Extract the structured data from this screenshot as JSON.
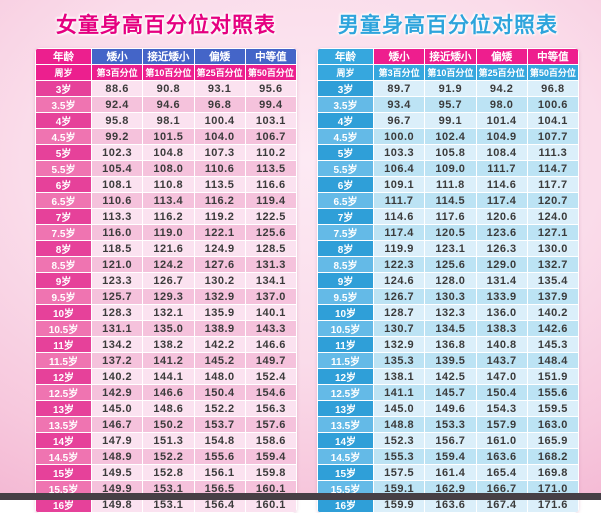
{
  "colors": {
    "girls_title": "#e50080",
    "boys_title": "#2ea4dc",
    "magenta_header": "#ec1f8e",
    "royal_blue_header": "#4465c8",
    "light_blue_header": "#36a7de",
    "bottom_bar": "#463f45"
  },
  "chart_data": [
    {
      "type": "table",
      "title": "女童身高百分位对照表",
      "columns_row1": [
        "年龄",
        "矮小",
        "接近矮小",
        "偏矮",
        "中等值"
      ],
      "columns_row2": [
        "周岁",
        "第3百分位",
        "第10百分位",
        "第25百分位",
        "第50百分位"
      ],
      "rows": [
        [
          "3岁",
          "88.6",
          "90.8",
          "93.1",
          "95.6"
        ],
        [
          "3.5岁",
          "92.4",
          "94.6",
          "96.8",
          "99.4"
        ],
        [
          "4岁",
          "95.8",
          "98.1",
          "100.4",
          "103.1"
        ],
        [
          "4.5岁",
          "99.2",
          "101.5",
          "104.0",
          "106.7"
        ],
        [
          "5岁",
          "102.3",
          "104.8",
          "107.3",
          "110.2"
        ],
        [
          "5.5岁",
          "105.4",
          "108.0",
          "110.6",
          "113.5"
        ],
        [
          "6岁",
          "108.1",
          "110.8",
          "113.5",
          "116.6"
        ],
        [
          "6.5岁",
          "110.6",
          "113.4",
          "116.2",
          "119.4"
        ],
        [
          "7岁",
          "113.3",
          "116.2",
          "119.2",
          "122.5"
        ],
        [
          "7.5岁",
          "116.0",
          "119.0",
          "122.1",
          "125.6"
        ],
        [
          "8岁",
          "118.5",
          "121.6",
          "124.9",
          "128.5"
        ],
        [
          "8.5岁",
          "121.0",
          "124.2",
          "127.6",
          "131.3"
        ],
        [
          "9岁",
          "123.3",
          "126.7",
          "130.2",
          "134.1"
        ],
        [
          "9.5岁",
          "125.7",
          "129.3",
          "132.9",
          "137.0"
        ],
        [
          "10岁",
          "128.3",
          "132.1",
          "135.9",
          "140.1"
        ],
        [
          "10.5岁",
          "131.1",
          "135.0",
          "138.9",
          "143.3"
        ],
        [
          "11岁",
          "134.2",
          "138.2",
          "142.2",
          "146.6"
        ],
        [
          "11.5岁",
          "137.2",
          "141.2",
          "145.2",
          "149.7"
        ],
        [
          "12岁",
          "140.2",
          "144.1",
          "148.0",
          "152.4"
        ],
        [
          "12.5岁",
          "142.9",
          "146.6",
          "150.4",
          "154.6"
        ],
        [
          "13岁",
          "145.0",
          "148.6",
          "152.2",
          "156.3"
        ],
        [
          "13.5岁",
          "146.7",
          "150.2",
          "153.7",
          "157.6"
        ],
        [
          "14岁",
          "147.9",
          "151.3",
          "154.8",
          "158.6"
        ],
        [
          "14.5岁",
          "148.9",
          "152.2",
          "155.6",
          "159.4"
        ],
        [
          "15岁",
          "149.5",
          "152.8",
          "156.1",
          "159.8"
        ],
        [
          "15.5岁",
          "149.9",
          "153.1",
          "156.5",
          "160.1"
        ],
        [
          "16岁",
          "149.8",
          "153.1",
          "156.4",
          "160.1"
        ]
      ]
    },
    {
      "type": "table",
      "title": "男童身高百分位对照表",
      "columns_row1": [
        "年龄",
        "矮小",
        "接近矮小",
        "偏矮",
        "中等值"
      ],
      "columns_row2": [
        "周岁",
        "第3百分位",
        "第10百分位",
        "第25百分位",
        "第50百分位"
      ],
      "rows": [
        [
          "3岁",
          "89.7",
          "91.9",
          "94.2",
          "96.8"
        ],
        [
          "3.5岁",
          "93.4",
          "95.7",
          "98.0",
          "100.6"
        ],
        [
          "4岁",
          "96.7",
          "99.1",
          "101.4",
          "104.1"
        ],
        [
          "4.5岁",
          "100.0",
          "102.4",
          "104.9",
          "107.7"
        ],
        [
          "5岁",
          "103.3",
          "105.8",
          "108.4",
          "111.3"
        ],
        [
          "5.5岁",
          "106.4",
          "109.0",
          "111.7",
          "114.7"
        ],
        [
          "6岁",
          "109.1",
          "111.8",
          "114.6",
          "117.7"
        ],
        [
          "6.5岁",
          "111.7",
          "114.5",
          "117.4",
          "120.7"
        ],
        [
          "7岁",
          "114.6",
          "117.6",
          "120.6",
          "124.0"
        ],
        [
          "7.5岁",
          "117.4",
          "120.5",
          "123.6",
          "127.1"
        ],
        [
          "8岁",
          "119.9",
          "123.1",
          "126.3",
          "130.0"
        ],
        [
          "8.5岁",
          "122.3",
          "125.6",
          "129.0",
          "132.7"
        ],
        [
          "9岁",
          "124.6",
          "128.0",
          "131.4",
          "135.4"
        ],
        [
          "9.5岁",
          "126.7",
          "130.3",
          "133.9",
          "137.9"
        ],
        [
          "10岁",
          "128.7",
          "132.3",
          "136.0",
          "140.2"
        ],
        [
          "10.5岁",
          "130.7",
          "134.5",
          "138.3",
          "142.6"
        ],
        [
          "11岁",
          "132.9",
          "136.8",
          "140.8",
          "145.3"
        ],
        [
          "11.5岁",
          "135.3",
          "139.5",
          "143.7",
          "148.4"
        ],
        [
          "12岁",
          "138.1",
          "142.5",
          "147.0",
          "151.9"
        ],
        [
          "12.5岁",
          "141.1",
          "145.7",
          "150.4",
          "155.6"
        ],
        [
          "13岁",
          "145.0",
          "149.6",
          "154.3",
          "159.5"
        ],
        [
          "13.5岁",
          "148.8",
          "153.3",
          "157.9",
          "163.0"
        ],
        [
          "14岁",
          "152.3",
          "156.7",
          "161.0",
          "165.9"
        ],
        [
          "14.5岁",
          "155.3",
          "159.4",
          "163.6",
          "168.2"
        ],
        [
          "15岁",
          "157.5",
          "161.4",
          "165.4",
          "169.8"
        ],
        [
          "15.5岁",
          "159.1",
          "162.9",
          "166.7",
          "171.0"
        ],
        [
          "16岁",
          "159.9",
          "163.6",
          "167.4",
          "171.6"
        ]
      ]
    }
  ]
}
